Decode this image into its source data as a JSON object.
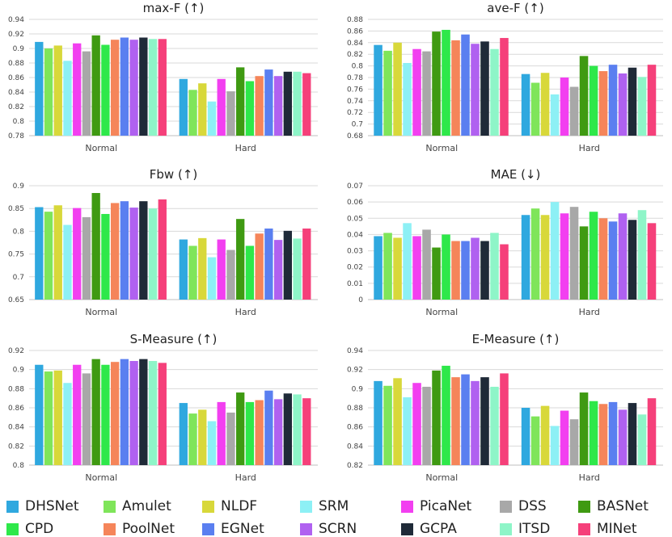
{
  "legend": {
    "items": [
      {
        "name": "DHSNet",
        "color": "#2fa8df"
      },
      {
        "name": "Amulet",
        "color": "#7fe55a"
      },
      {
        "name": "NLDF",
        "color": "#d8d83a"
      },
      {
        "name": "SRM",
        "color": "#8df0f5"
      },
      {
        "name": "PicaNet",
        "color": "#f23ff0"
      },
      {
        "name": "DSS",
        "color": "#a8a8a8"
      },
      {
        "name": "BASNet",
        "color": "#3f9a12"
      },
      {
        "name": "CPD",
        "color": "#2ee84a"
      },
      {
        "name": "PoolNet",
        "color": "#f5855a"
      },
      {
        "name": "EGNet",
        "color": "#5a7ff0"
      },
      {
        "name": "SCRN",
        "color": "#b061f0"
      },
      {
        "name": "GCPA",
        "color": "#1f2a38"
      },
      {
        "name": "ITSD",
        "color": "#8ef5c8"
      },
      {
        "name": "MINet",
        "color": "#f5407a"
      }
    ]
  },
  "chart_data": [
    {
      "type": "bar",
      "title": "max-F (↑)",
      "categories": [
        "Normal",
        "Hard"
      ],
      "ylim": [
        0.78,
        0.94
      ],
      "yticks": [
        "0.78",
        "0.8",
        "0.82",
        "0.84",
        "0.86",
        "0.88",
        "0.9",
        "0.92",
        "0.94"
      ],
      "series": [
        {
          "name": "DHSNet",
          "values": [
            0.909,
            0.858
          ]
        },
        {
          "name": "Amulet",
          "values": [
            0.9,
            0.843
          ]
        },
        {
          "name": "NLDF",
          "values": [
            0.904,
            0.852
          ]
        },
        {
          "name": "SRM",
          "values": [
            0.883,
            0.827
          ]
        },
        {
          "name": "PicaNet",
          "values": [
            0.907,
            0.858
          ]
        },
        {
          "name": "DSS",
          "values": [
            0.896,
            0.841
          ]
        },
        {
          "name": "BASNet",
          "values": [
            0.918,
            0.874
          ]
        },
        {
          "name": "CPD",
          "values": [
            0.905,
            0.855
          ]
        },
        {
          "name": "PoolNet",
          "values": [
            0.912,
            0.862
          ]
        },
        {
          "name": "EGNet",
          "values": [
            0.915,
            0.871
          ]
        },
        {
          "name": "SCRN",
          "values": [
            0.912,
            0.862
          ]
        },
        {
          "name": "GCPA",
          "values": [
            0.915,
            0.868
          ]
        },
        {
          "name": "ITSD",
          "values": [
            0.913,
            0.868
          ]
        },
        {
          "name": "MINet",
          "values": [
            0.913,
            0.866
          ]
        }
      ]
    },
    {
      "type": "bar",
      "title": "ave-F (↑)",
      "categories": [
        "Normal",
        "Hard"
      ],
      "ylim": [
        0.68,
        0.88
      ],
      "yticks": [
        "0.68",
        "0.7",
        "0.72",
        "0.74",
        "0.76",
        "0.78",
        "0.8",
        "0.82",
        "0.84",
        "0.86",
        "0.88"
      ],
      "series": [
        {
          "name": "DHSNet",
          "values": [
            0.836,
            0.786
          ]
        },
        {
          "name": "Amulet",
          "values": [
            0.826,
            0.771
          ]
        },
        {
          "name": "NLDF",
          "values": [
            0.84,
            0.788
          ]
        },
        {
          "name": "SRM",
          "values": [
            0.805,
            0.751
          ]
        },
        {
          "name": "PicaNet",
          "values": [
            0.829,
            0.78
          ]
        },
        {
          "name": "DSS",
          "values": [
            0.825,
            0.764
          ]
        },
        {
          "name": "BASNet",
          "values": [
            0.859,
            0.817
          ]
        },
        {
          "name": "CPD",
          "values": [
            0.862,
            0.8
          ]
        },
        {
          "name": "PoolNet",
          "values": [
            0.844,
            0.791
          ]
        },
        {
          "name": "EGNet",
          "values": [
            0.854,
            0.802
          ]
        },
        {
          "name": "SCRN",
          "values": [
            0.838,
            0.787
          ]
        },
        {
          "name": "GCPA",
          "values": [
            0.842,
            0.797
          ]
        },
        {
          "name": "ITSD",
          "values": [
            0.829,
            0.781
          ]
        },
        {
          "name": "MINet",
          "values": [
            0.848,
            0.802
          ]
        }
      ]
    },
    {
      "type": "bar",
      "title": "Fbw (↑)",
      "categories": [
        "Normal",
        "Hard"
      ],
      "ylim": [
        0.65,
        0.9
      ],
      "yticks": [
        "0.65",
        "0.7",
        "0.75",
        "0.8",
        "0.85",
        "0.9"
      ],
      "series": [
        {
          "name": "DHSNet",
          "values": [
            0.853,
            0.782
          ]
        },
        {
          "name": "Amulet",
          "values": [
            0.843,
            0.768
          ]
        },
        {
          "name": "NLDF",
          "values": [
            0.857,
            0.785
          ]
        },
        {
          "name": "SRM",
          "values": [
            0.814,
            0.743
          ]
        },
        {
          "name": "PicaNet",
          "values": [
            0.851,
            0.782
          ]
        },
        {
          "name": "DSS",
          "values": [
            0.831,
            0.759
          ]
        },
        {
          "name": "BASNet",
          "values": [
            0.884,
            0.827
          ]
        },
        {
          "name": "CPD",
          "values": [
            0.838,
            0.768
          ]
        },
        {
          "name": "PoolNet",
          "values": [
            0.862,
            0.795
          ]
        },
        {
          "name": "EGNet",
          "values": [
            0.866,
            0.806
          ]
        },
        {
          "name": "SCRN",
          "values": [
            0.852,
            0.781
          ]
        },
        {
          "name": "GCPA",
          "values": [
            0.866,
            0.801
          ]
        },
        {
          "name": "ITSD",
          "values": [
            0.85,
            0.784
          ]
        },
        {
          "name": "MINet",
          "values": [
            0.87,
            0.806
          ]
        }
      ]
    },
    {
      "type": "bar",
      "title": "MAE (↓)",
      "categories": [
        "Normal",
        "Hard"
      ],
      "ylim": [
        0,
        0.07
      ],
      "yticks": [
        "0",
        "0.01",
        "0.02",
        "0.03",
        "0.04",
        "0.05",
        "0.06",
        "0.07"
      ],
      "series": [
        {
          "name": "DHSNet",
          "values": [
            0.039,
            0.052
          ]
        },
        {
          "name": "Amulet",
          "values": [
            0.041,
            0.056
          ]
        },
        {
          "name": "NLDF",
          "values": [
            0.038,
            0.052
          ]
        },
        {
          "name": "SRM",
          "values": [
            0.047,
            0.06
          ]
        },
        {
          "name": "PicaNet",
          "values": [
            0.039,
            0.053
          ]
        },
        {
          "name": "DSS",
          "values": [
            0.043,
            0.057
          ]
        },
        {
          "name": "BASNet",
          "values": [
            0.032,
            0.045
          ]
        },
        {
          "name": "CPD",
          "values": [
            0.04,
            0.054
          ]
        },
        {
          "name": "PoolNet",
          "values": [
            0.036,
            0.05
          ]
        },
        {
          "name": "EGNet",
          "values": [
            0.036,
            0.048
          ]
        },
        {
          "name": "SCRN",
          "values": [
            0.038,
            0.053
          ]
        },
        {
          "name": "GCPA",
          "values": [
            0.036,
            0.049
          ]
        },
        {
          "name": "ITSD",
          "values": [
            0.041,
            0.055
          ]
        },
        {
          "name": "MINet",
          "values": [
            0.034,
            0.047
          ]
        }
      ]
    },
    {
      "type": "bar",
      "title": "S-Measure (↑)",
      "categories": [
        "Normal",
        "Hard"
      ],
      "ylim": [
        0.8,
        0.92
      ],
      "yticks": [
        "0.8",
        "0.82",
        "0.84",
        "0.86",
        "0.88",
        "0.9",
        "0.92"
      ],
      "series": [
        {
          "name": "DHSNet",
          "values": [
            0.905,
            0.865
          ]
        },
        {
          "name": "Amulet",
          "values": [
            0.898,
            0.854
          ]
        },
        {
          "name": "NLDF",
          "values": [
            0.899,
            0.858
          ]
        },
        {
          "name": "SRM",
          "values": [
            0.886,
            0.846
          ]
        },
        {
          "name": "PicaNet",
          "values": [
            0.905,
            0.866
          ]
        },
        {
          "name": "DSS",
          "values": [
            0.896,
            0.855
          ]
        },
        {
          "name": "BASNet",
          "values": [
            0.911,
            0.876
          ]
        },
        {
          "name": "CPD",
          "values": [
            0.905,
            0.866
          ]
        },
        {
          "name": "PoolNet",
          "values": [
            0.908,
            0.868
          ]
        },
        {
          "name": "EGNet",
          "values": [
            0.911,
            0.878
          ]
        },
        {
          "name": "SCRN",
          "values": [
            0.909,
            0.869
          ]
        },
        {
          "name": "GCPA",
          "values": [
            0.911,
            0.875
          ]
        },
        {
          "name": "ITSD",
          "values": [
            0.909,
            0.874
          ]
        },
        {
          "name": "MINet",
          "values": [
            0.907,
            0.87
          ]
        }
      ]
    },
    {
      "type": "bar",
      "title": "E-Measure (↑)",
      "categories": [
        "Normal",
        "Hard"
      ],
      "ylim": [
        0.82,
        0.94
      ],
      "yticks": [
        "0.82",
        "0.84",
        "0.86",
        "0.88",
        "0.9",
        "0.92",
        "0.94"
      ],
      "series": [
        {
          "name": "DHSNet",
          "values": [
            0.908,
            0.88
          ]
        },
        {
          "name": "Amulet",
          "values": [
            0.903,
            0.871
          ]
        },
        {
          "name": "NLDF",
          "values": [
            0.911,
            0.882
          ]
        },
        {
          "name": "SRM",
          "values": [
            0.891,
            0.861
          ]
        },
        {
          "name": "PicaNet",
          "values": [
            0.906,
            0.877
          ]
        },
        {
          "name": "DSS",
          "values": [
            0.902,
            0.868
          ]
        },
        {
          "name": "BASNet",
          "values": [
            0.919,
            0.896
          ]
        },
        {
          "name": "CPD",
          "values": [
            0.924,
            0.887
          ]
        },
        {
          "name": "PoolNet",
          "values": [
            0.912,
            0.884
          ]
        },
        {
          "name": "EGNet",
          "values": [
            0.915,
            0.886
          ]
        },
        {
          "name": "SCRN",
          "values": [
            0.908,
            0.878
          ]
        },
        {
          "name": "GCPA",
          "values": [
            0.912,
            0.885
          ]
        },
        {
          "name": "ITSD",
          "values": [
            0.902,
            0.873
          ]
        },
        {
          "name": "MINet",
          "values": [
            0.916,
            0.89
          ]
        }
      ]
    }
  ]
}
